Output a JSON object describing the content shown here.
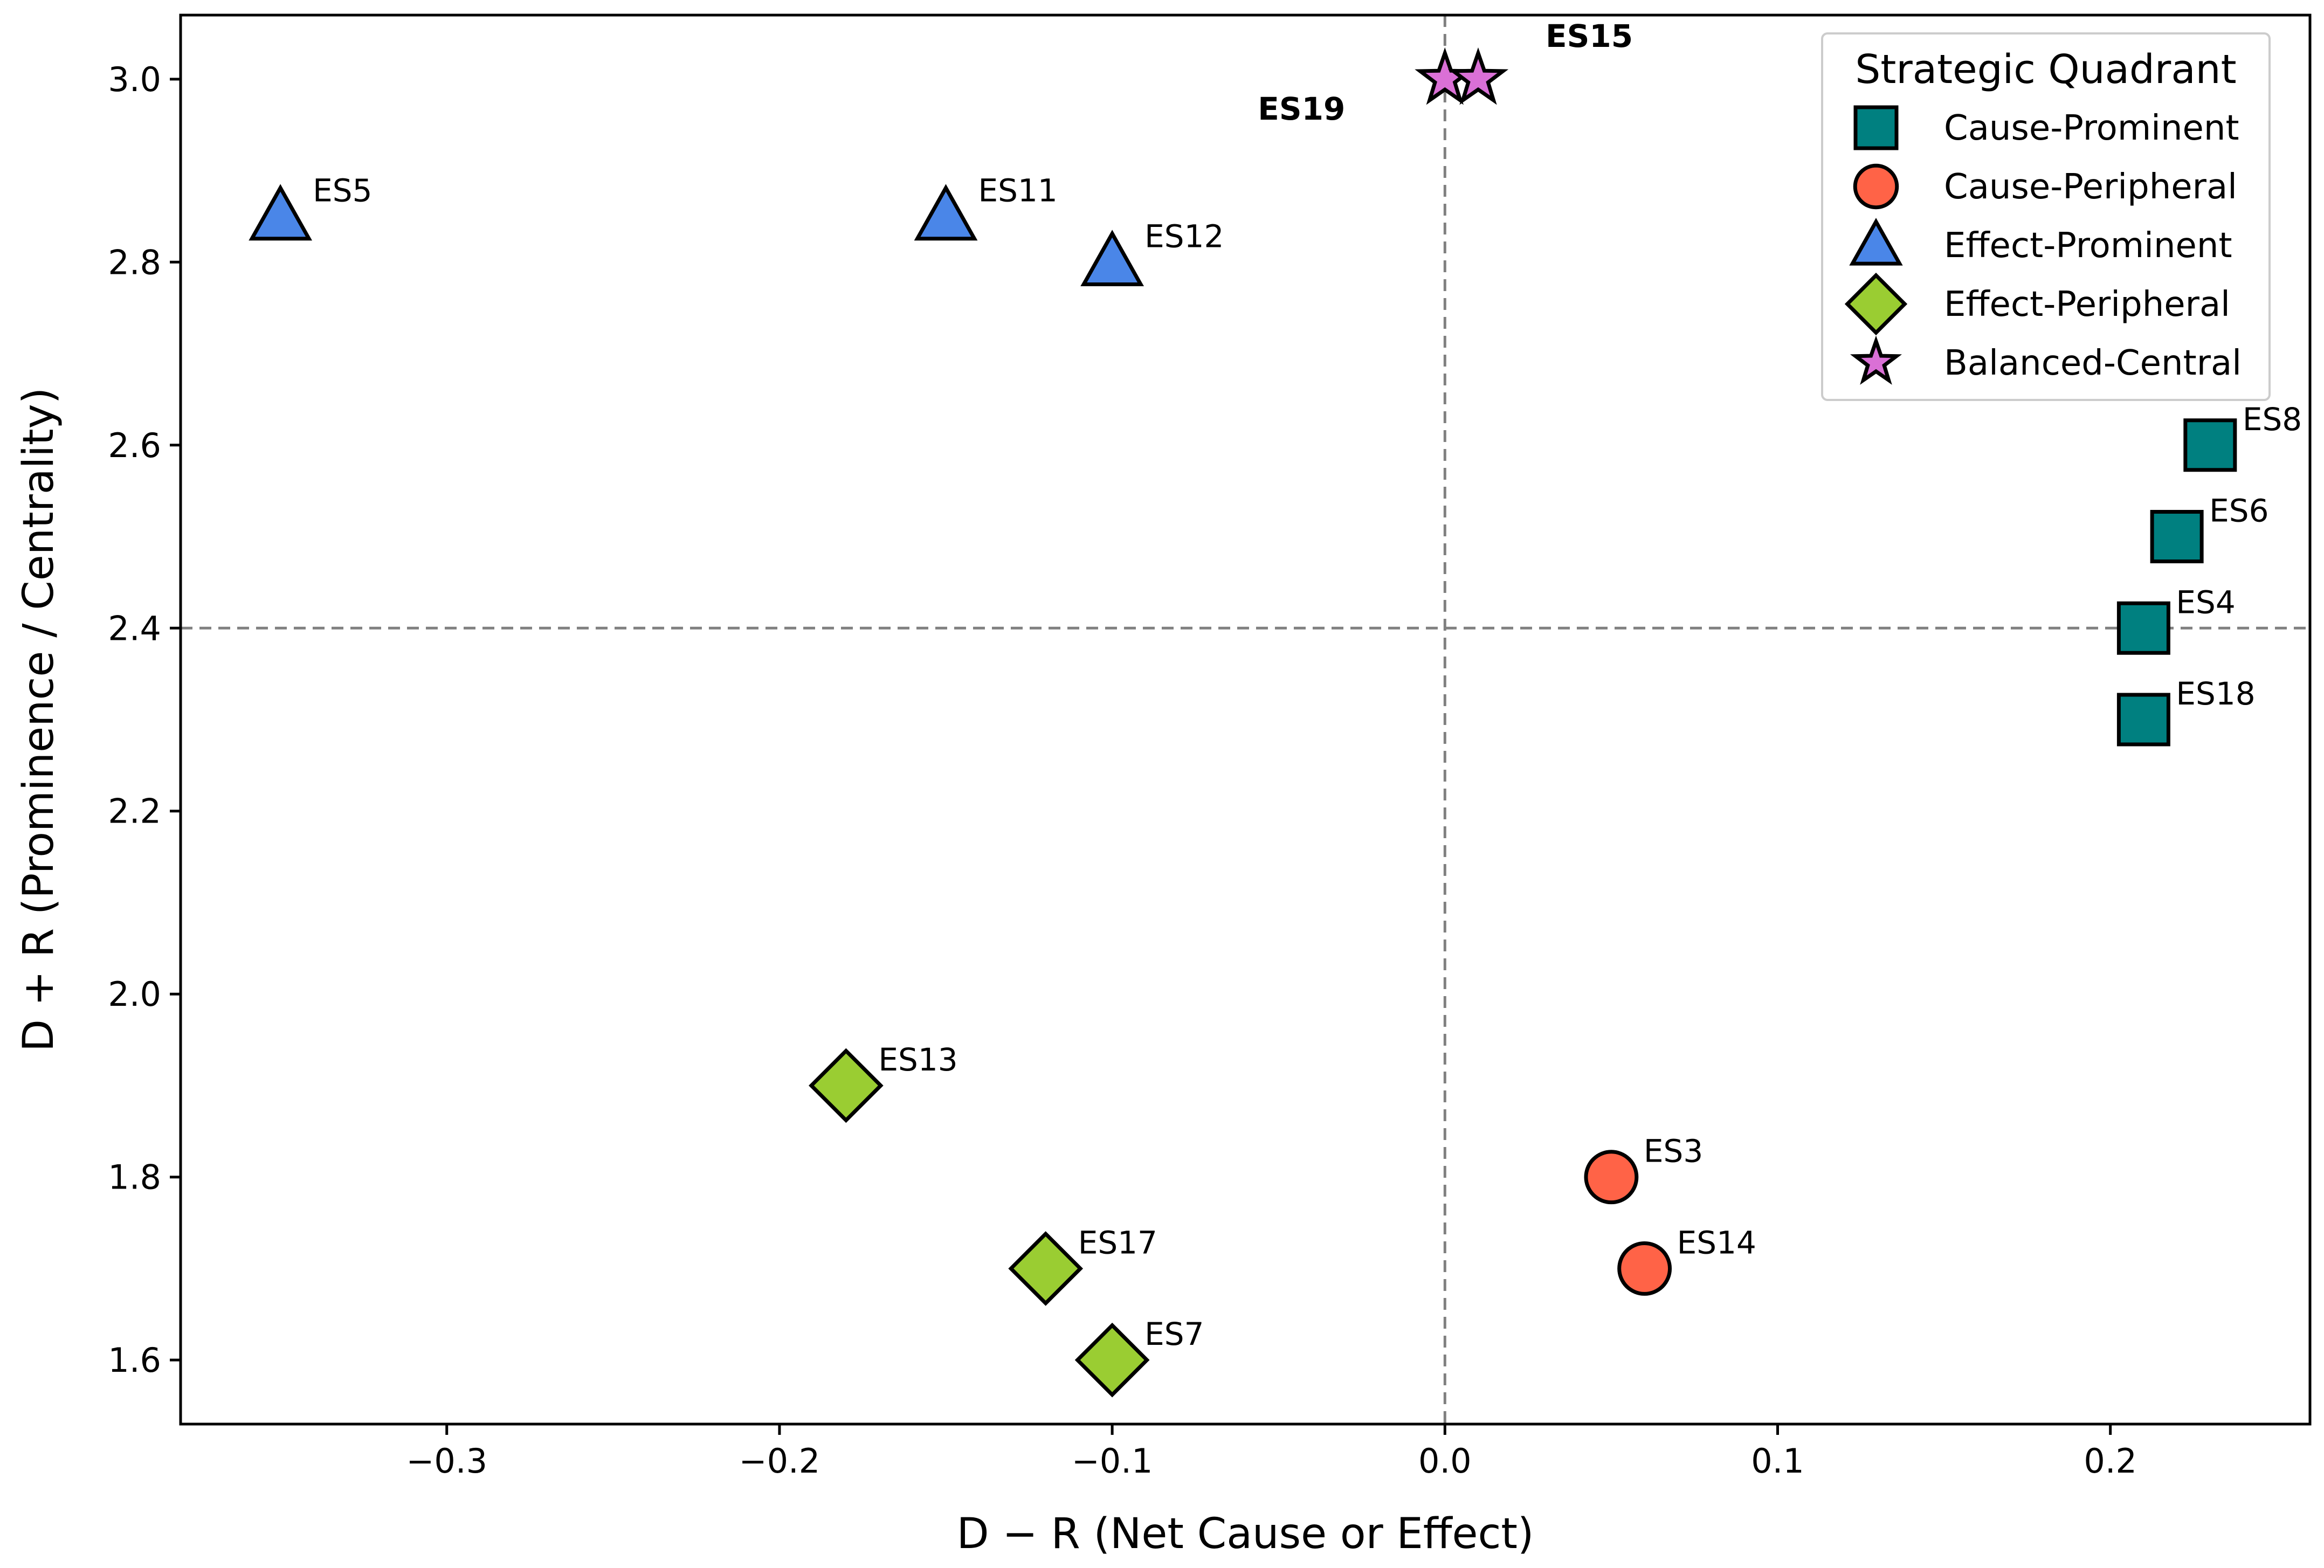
{
  "chart_data": {
    "type": "scatter",
    "title": "",
    "xlabel": "D − R (Net Cause or Effect)",
    "ylabel": "D + R (Prominence / Centrality)",
    "xlim": [
      -0.38,
      0.26
    ],
    "ylim": [
      1.53,
      3.07
    ],
    "xticks": [
      -0.3,
      -0.2,
      -0.1,
      0.0,
      0.1,
      0.2
    ],
    "xtick_labels": [
      "−0.3",
      "−0.2",
      "−0.1",
      "0.0",
      "0.1",
      "0.2"
    ],
    "yticks": [
      1.6,
      1.8,
      2.0,
      2.2,
      2.4,
      2.6,
      2.8,
      3.0
    ],
    "ytick_labels": [
      "1.6",
      "1.8",
      "2.0",
      "2.2",
      "2.4",
      "2.6",
      "2.8",
      "3.0"
    ],
    "grid": false,
    "reference_lines": {
      "x": 0.0,
      "y": 2.4
    },
    "legend": {
      "title": "Strategic Quadrant",
      "placement": "top-right",
      "entries": [
        {
          "name": "Cause-Prominent",
          "marker": "square",
          "color": "#008080"
        },
        {
          "name": "Cause-Peripheral",
          "marker": "circle",
          "color": "#FF6347"
        },
        {
          "name": "Effect-Prominent",
          "marker": "triangle",
          "color": "#4A86E8"
        },
        {
          "name": "Effect-Peripheral",
          "marker": "diamond",
          "color": "#9ACD32"
        },
        {
          "name": "Balanced-Central",
          "marker": "star",
          "color": "#DA70D6"
        }
      ]
    },
    "series": [
      {
        "name": "Cause-Prominent",
        "marker": "square",
        "color": "#008080",
        "points": [
          {
            "label": "ES8",
            "x": 0.23,
            "y": 2.6
          },
          {
            "label": "ES6",
            "x": 0.22,
            "y": 2.5
          },
          {
            "label": "ES4",
            "x": 0.21,
            "y": 2.4
          },
          {
            "label": "ES18",
            "x": 0.21,
            "y": 2.3
          }
        ]
      },
      {
        "name": "Cause-Peripheral",
        "marker": "circle",
        "color": "#FF6347",
        "points": [
          {
            "label": "ES3",
            "x": 0.05,
            "y": 1.8
          },
          {
            "label": "ES14",
            "x": 0.06,
            "y": 1.7
          }
        ]
      },
      {
        "name": "Effect-Prominent",
        "marker": "triangle",
        "color": "#4A86E8",
        "points": [
          {
            "label": "ES5",
            "x": -0.35,
            "y": 2.85
          },
          {
            "label": "ES11",
            "x": -0.15,
            "y": 2.85
          },
          {
            "label": "ES12",
            "x": -0.1,
            "y": 2.8
          }
        ]
      },
      {
        "name": "Effect-Peripheral",
        "marker": "diamond",
        "color": "#9ACD32",
        "points": [
          {
            "label": "ES13",
            "x": -0.18,
            "y": 1.9
          },
          {
            "label": "ES17",
            "x": -0.12,
            "y": 1.7
          },
          {
            "label": "ES7",
            "x": -0.1,
            "y": 1.6
          }
        ]
      },
      {
        "name": "Balanced-Central",
        "marker": "star",
        "color": "#DA70D6",
        "points": [
          {
            "label": "ES19",
            "x": 0.0,
            "y": 3.0,
            "bold": true,
            "label_side": "left"
          },
          {
            "label": "ES15",
            "x": 0.01,
            "y": 3.0,
            "bold": true,
            "label_side": "right"
          }
        ]
      }
    ]
  }
}
